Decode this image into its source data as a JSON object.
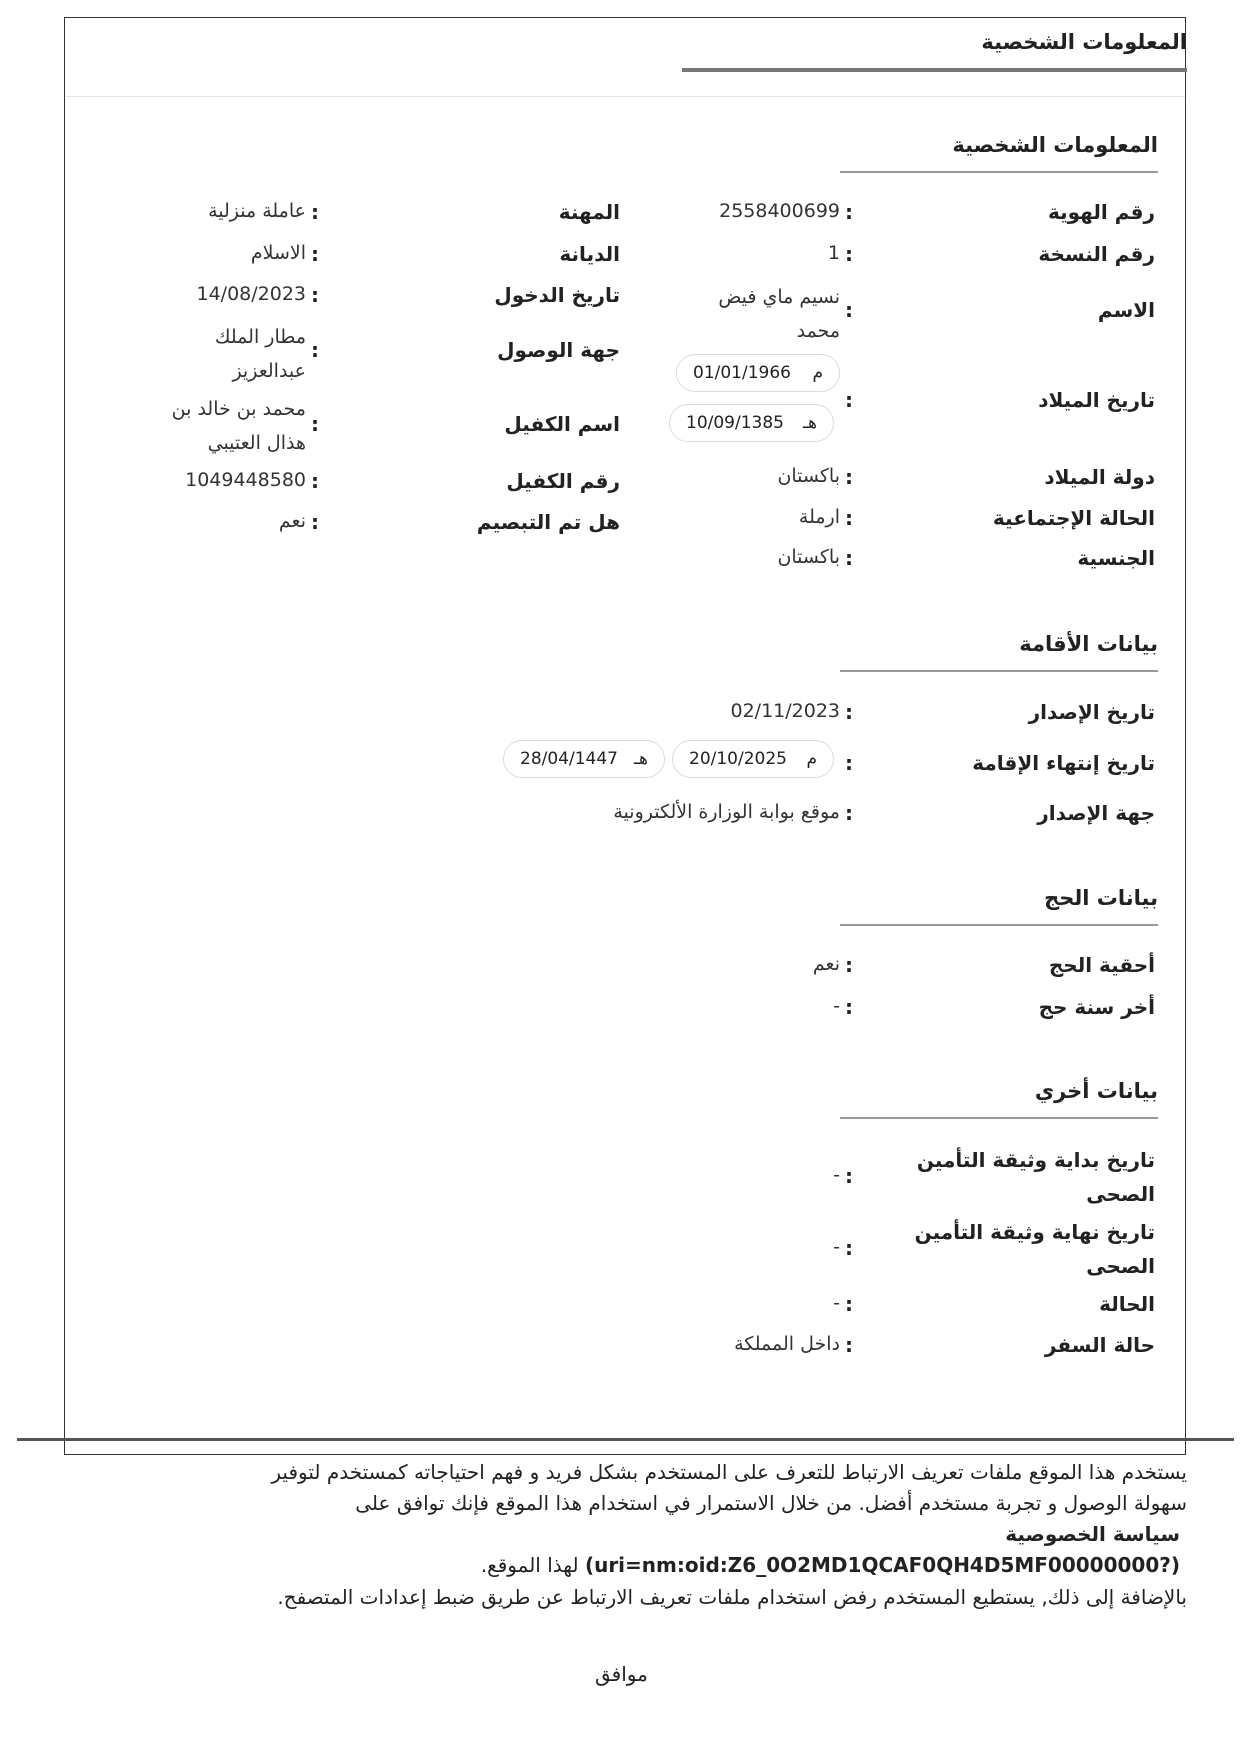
{
  "header": {
    "title": "المعلومات الشخصية"
  },
  "personal": {
    "heading": "المعلومات الشخصية",
    "id_label": "رقم الهوية",
    "id_value": "2558400699",
    "copy_label": "رقم النسخة",
    "copy_value": "1",
    "name_label": "الاسم",
    "name_value": "نسيم ماي فيض محمد",
    "dob_label": "تاريخ الميلاد",
    "dob_greg_marker": "م",
    "dob_greg": "01/01/1966",
    "dob_hijri_marker": "هـ",
    "dob_hijri": "10/09/1385",
    "birth_country_label": "دولة الميلاد",
    "birth_country_value": "باكستان",
    "marital_label": "الحالة الإجتماعية",
    "marital_value": "ارملة",
    "nationality_label": "الجنسية",
    "nationality_value": "باكستان",
    "occupation_label": "المهنة",
    "occupation_value": "عاملة منزلية",
    "religion_label": "الديانة",
    "religion_value": "الاسلام",
    "entry_date_label": "تاريخ الدخول",
    "entry_date_value": "14/08/2023",
    "arrival_label": "جهة الوصول",
    "arrival_value": "مطار الملك عبدالعزيز",
    "sponsor_name_label": "اسم الكفيل",
    "sponsor_name_value": "محمد بن خالد بن هذال العتيبي",
    "sponsor_id_label": "رقم الكفيل",
    "sponsor_id_value": "1049448580",
    "fingerprint_label": "هل تم التبصيم",
    "fingerprint_value": "نعم",
    "colon": ":"
  },
  "residence": {
    "heading": "بيانات الأقامة",
    "issue_label": "تاريخ الإصدار",
    "issue_value": "02/11/2023",
    "expiry_label": "تاريخ إنتهاء الإقامة",
    "expiry_greg_marker": "م",
    "expiry_greg": "20/10/2025",
    "expiry_hijri_marker": "هـ",
    "expiry_hijri": "28/04/1447",
    "issuer_label": "جهة الإصدار",
    "issuer_value": "موقع بوابة الوزارة الألكترونية"
  },
  "hajj": {
    "heading": "بيانات الحج",
    "eligible_label": "أحقية الحج",
    "eligible_value": "نعم",
    "last_year_label": "أخر سنة حج",
    "last_year_value": "-"
  },
  "other": {
    "heading": "بيانات أخري",
    "ins_start_label": "تاريخ بداية وثيقة التأمين الصحى",
    "ins_start_value": "-",
    "ins_end_label": "تاريخ نهاية وثيقة التأمين الصحى",
    "ins_end_value": "-",
    "status_label": "الحالة",
    "status_value": "-",
    "travel_label": "حالة السفر",
    "travel_value": "داخل المملكة"
  },
  "cookie": {
    "line1": "يستخدم هذا الموقع ملفات تعريف الارتباط للتعرف على المستخدم بشكل فريد و فهم احتياجاته كمستخدم لتوفير",
    "line2": "سهولة الوصول و تجربة مستخدم أفضل. من خلال الاستمرار في استخدام هذا الموقع فإنك توافق على",
    "privacy_link": "سياسة الخصوصية",
    "uri": "(uri=nm:oid:Z6_0O2MD1QCAF0QH4D5MF00000000?)",
    "line4_suffix": "لهذا الموقع.",
    "line5": "بالإضافة إلى ذلك, يستطيع المستخدم رفض استخدام ملفات تعريف الارتباط عن طريق ضبط إعدادات المتصفح.",
    "agree_button": "موافق"
  }
}
